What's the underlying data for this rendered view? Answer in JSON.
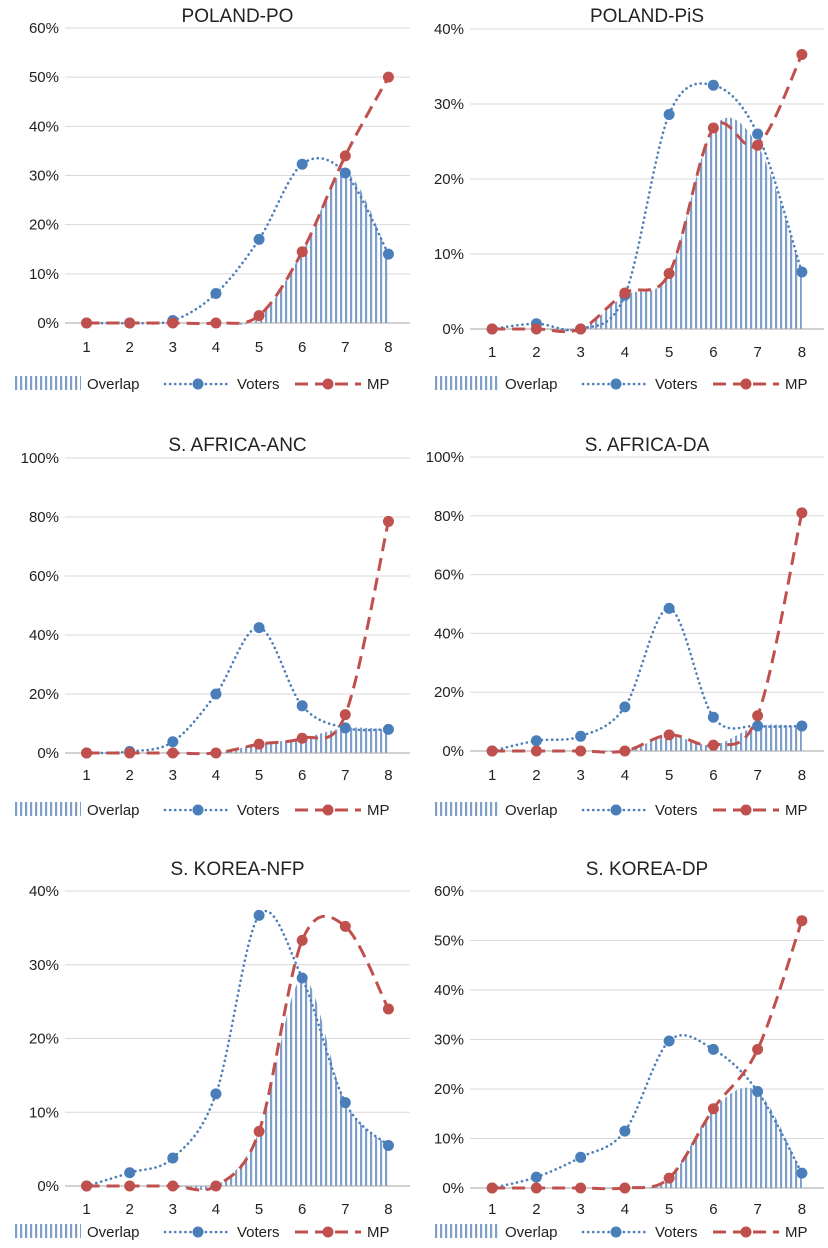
{
  "chart_data": [
    {
      "type": "line",
      "title": "POLAND-PO",
      "categories": [
        "1",
        "2",
        "3",
        "4",
        "5",
        "6",
        "7",
        "8"
      ],
      "ylim": [
        0,
        60
      ],
      "yticks": [
        "0%",
        "10%",
        "20%",
        "30%",
        "40%",
        "50%",
        "60%"
      ],
      "grid": true,
      "legend": "bottom",
      "series": [
        {
          "name": "Overlap",
          "style": "vertical-hatch",
          "values": [
            0,
            0,
            0,
            0,
            1,
            14.5,
            30.5,
            14
          ]
        },
        {
          "name": "Voters",
          "style": "dotted-markers",
          "values": [
            0,
            0,
            0.5,
            6,
            17,
            32.3,
            30.5,
            14
          ]
        },
        {
          "name": "MP",
          "style": "dashed-markers",
          "values": [
            0,
            0,
            0,
            0,
            1.5,
            14.5,
            34,
            50
          ]
        }
      ]
    },
    {
      "type": "line",
      "title": "POLAND-PiS",
      "categories": [
        "1",
        "2",
        "3",
        "4",
        "5",
        "6",
        "7",
        "8"
      ],
      "ylim": [
        0,
        40
      ],
      "yticks": [
        "0%",
        "10%",
        "20%",
        "30%",
        "40%"
      ],
      "grid": true,
      "legend": "bottom",
      "series": [
        {
          "name": "Overlap",
          "style": "vertical-hatch",
          "values": [
            0,
            0,
            0,
            4.5,
            7.4,
            26.8,
            24.5,
            7.6
          ]
        },
        {
          "name": "Voters",
          "style": "dotted-markers",
          "values": [
            0,
            0.7,
            0,
            4.5,
            28.6,
            32.5,
            26,
            7.6
          ]
        },
        {
          "name": "MP",
          "style": "dashed-markers",
          "values": [
            0,
            0,
            0,
            4.8,
            7.4,
            26.8,
            24.5,
            36.6
          ]
        }
      ]
    },
    {
      "type": "line",
      "title": "S. AFRICA-ANC",
      "categories": [
        "1",
        "2",
        "3",
        "4",
        "5",
        "6",
        "7",
        "8"
      ],
      "ylim": [
        0,
        100
      ],
      "yticks": [
        "0%",
        "20%",
        "40%",
        "60%",
        "80%",
        "100%"
      ],
      "grid": true,
      "legend": "bottom",
      "series": [
        {
          "name": "Overlap",
          "style": "vertical-hatch",
          "values": [
            0,
            0,
            0,
            0,
            3,
            5,
            8.5,
            8
          ]
        },
        {
          "name": "Voters",
          "style": "dotted-markers",
          "values": [
            0,
            0.5,
            3.8,
            20,
            42.5,
            16,
            8.5,
            8
          ]
        },
        {
          "name": "MP",
          "style": "dashed-markers",
          "values": [
            0,
            0,
            0,
            0,
            3,
            5,
            13,
            78.5
          ]
        }
      ]
    },
    {
      "type": "line",
      "title": "S. AFRICA-DA",
      "categories": [
        "1",
        "2",
        "3",
        "4",
        "5",
        "6",
        "7",
        "8"
      ],
      "ylim": [
        0,
        100
      ],
      "yticks": [
        "0%",
        "20%",
        "40%",
        "60%",
        "80%",
        "100%"
      ],
      "grid": true,
      "legend": "bottom",
      "series": [
        {
          "name": "Overlap",
          "style": "vertical-hatch",
          "values": [
            0,
            0,
            0,
            0,
            5,
            2,
            8.5,
            8.5
          ]
        },
        {
          "name": "Voters",
          "style": "dotted-markers",
          "values": [
            0,
            3.5,
            5,
            15,
            48.5,
            11.5,
            8.5,
            8.5
          ]
        },
        {
          "name": "MP",
          "style": "dashed-markers",
          "values": [
            0,
            0,
            0,
            0,
            5.5,
            2,
            12,
            81
          ]
        }
      ]
    },
    {
      "type": "line",
      "title": "S. KOREA-NFP",
      "categories": [
        "1",
        "2",
        "3",
        "4",
        "5",
        "6",
        "7",
        "8"
      ],
      "ylim": [
        0,
        40
      ],
      "yticks": [
        "0%",
        "10%",
        "20%",
        "30%",
        "40%"
      ],
      "grid": true,
      "legend": "bottom",
      "series": [
        {
          "name": "Overlap",
          "style": "vertical-hatch",
          "values": [
            0,
            0,
            0,
            0,
            7.4,
            28.2,
            11.3,
            5.5
          ]
        },
        {
          "name": "Voters",
          "style": "dotted-markers",
          "values": [
            0,
            1.8,
            3.8,
            12.5,
            36.7,
            28.2,
            11.3,
            5.5
          ]
        },
        {
          "name": "MP",
          "style": "dashed-markers",
          "values": [
            0,
            0,
            0,
            0,
            7.4,
            33.3,
            35.2,
            24
          ]
        }
      ]
    },
    {
      "type": "line",
      "title": "S. KOREA-DP",
      "categories": [
        "1",
        "2",
        "3",
        "4",
        "5",
        "6",
        "7",
        "8"
      ],
      "ylim": [
        0,
        60
      ],
      "yticks": [
        "0%",
        "10%",
        "20%",
        "30%",
        "40%",
        "50%",
        "60%"
      ],
      "grid": true,
      "legend": "bottom",
      "series": [
        {
          "name": "Overlap",
          "style": "vertical-hatch",
          "values": [
            0,
            0,
            0,
            0,
            2,
            16,
            19.5,
            3
          ]
        },
        {
          "name": "Voters",
          "style": "dotted-markers",
          "values": [
            0,
            2.2,
            6.2,
            11.5,
            29.7,
            28,
            19.5,
            3
          ]
        },
        {
          "name": "MP",
          "style": "dashed-markers",
          "values": [
            0,
            0,
            0,
            0,
            2,
            16,
            28,
            54
          ]
        }
      ]
    }
  ],
  "colors": {
    "overlap": "#7f9fcb",
    "voters": "#4a7ebb",
    "mp": "#c0504d",
    "grid": "#d9d9d9",
    "axis": "#a6a6a6"
  }
}
